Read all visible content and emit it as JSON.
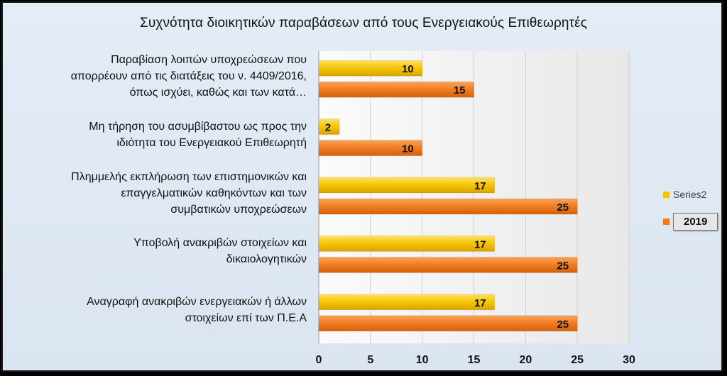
{
  "chart_data": {
    "type": "bar",
    "orientation": "horizontal",
    "title": "Συχνότητα διοικητικών παραβάσεων από τους Ενεργειακούς Επιθεωρητές",
    "categories": [
      [
        "Παραβίαση  λοιπών υποχρεώσεων που",
        "απορρέουν από τις διατάξεις του ν. 4409/2016,",
        "όπως ισχύει, καθώς και των κατά…"
      ],
      [
        "Μη τήρηση  του ασυμβίβαστου  ως προς την",
        "ιδιότητα του Ενεργειακού Επιθεωρητή"
      ],
      [
        "Πλημμελής εκπλήρωση των επιστημονικών και",
        "επαγγελματικών καθηκόντων και των",
        "συμβατικών υποχρεώσεων"
      ],
      [
        "Υποβολή  ανακριβών  στοιχείων και",
        "δικαιολογητικών"
      ],
      [
        "Αναγραφή ανακριβών ενεργειακών ή άλλων",
        "στοιχείων επί των Π.Ε.Α"
      ]
    ],
    "series": [
      {
        "name": "Series2",
        "values": [
          10,
          2,
          17,
          17,
          17
        ],
        "color": "#f5c400"
      },
      {
        "name": "2019",
        "values": [
          15,
          10,
          25,
          25,
          25
        ],
        "color": "#f07c22"
      }
    ],
    "xlim": [
      0,
      30
    ],
    "xticks": [
      "0",
      "5",
      "10",
      "15",
      "20",
      "25",
      "30"
    ],
    "grid": true,
    "legend_position": "right"
  }
}
